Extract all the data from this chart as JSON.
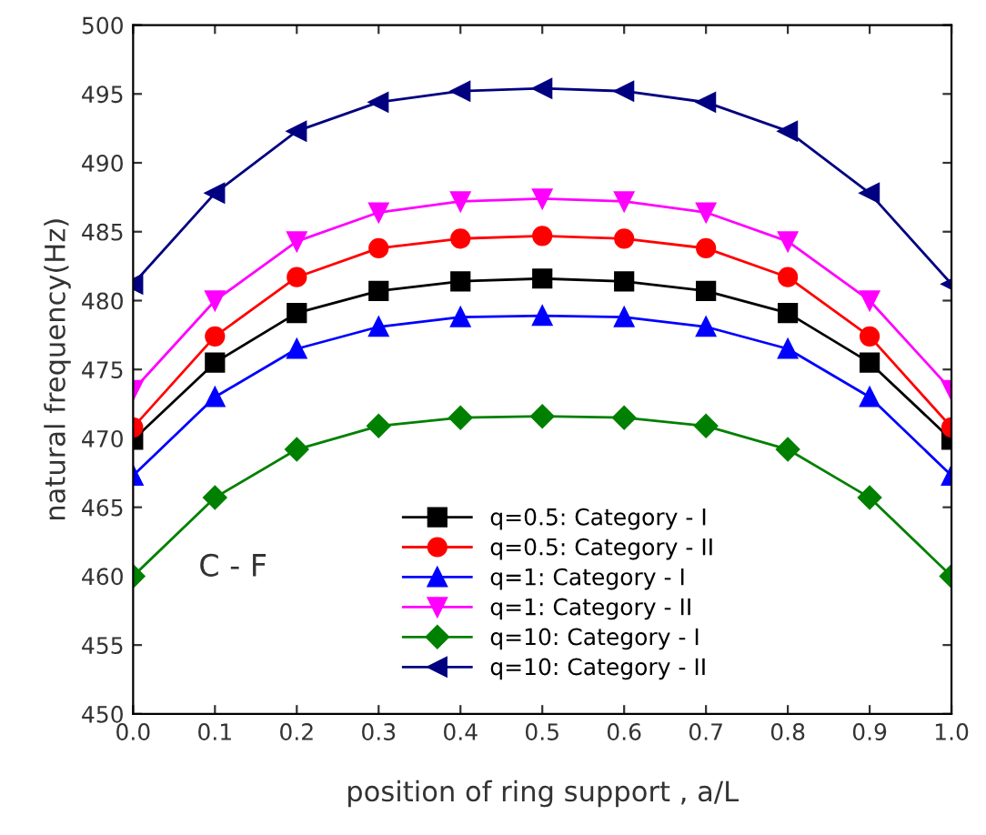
{
  "chart_data": {
    "type": "line",
    "xlabel": "position of ring support , a/L",
    "ylabel": "natural frequency(Hz)",
    "x": [
      0.0,
      0.1,
      0.2,
      0.3,
      0.4,
      0.5,
      0.6,
      0.7,
      0.8,
      0.9,
      1.0
    ],
    "series": [
      {
        "name": "q=0.5: Category - I",
        "color": "#000000",
        "marker": "square",
        "values": [
          469.9,
          475.5,
          479.1,
          480.7,
          481.4,
          481.6,
          481.4,
          480.7,
          479.1,
          475.5,
          469.9
        ]
      },
      {
        "name": "q=0.5: Category - II",
        "color": "#ff0000",
        "marker": "circle",
        "values": [
          470.8,
          477.4,
          481.7,
          483.8,
          484.5,
          484.7,
          484.5,
          483.8,
          481.7,
          477.4,
          470.8
        ]
      },
      {
        "name": "q=1: Category - I",
        "color": "#0000ff",
        "marker": "triangle",
        "values": [
          467.3,
          473.0,
          476.5,
          478.1,
          478.8,
          478.9,
          478.8,
          478.1,
          476.5,
          473.0,
          467.3
        ]
      },
      {
        "name": "q=1: Category - II",
        "color": "#ff00ff",
        "marker": "triangle_down",
        "values": [
          473.5,
          480.0,
          484.3,
          486.4,
          487.2,
          487.4,
          487.2,
          486.4,
          484.3,
          480.0,
          473.5
        ]
      },
      {
        "name": "q=10: Category - I",
        "color": "#008000",
        "marker": "diamond",
        "values": [
          460.0,
          465.7,
          469.2,
          470.9,
          471.5,
          471.6,
          471.5,
          470.9,
          469.2,
          465.7,
          460.0
        ]
      },
      {
        "name": "q=10: Category - II",
        "color": "#000080",
        "marker": "triangle_left",
        "values": [
          481.2,
          487.8,
          492.3,
          494.4,
          495.2,
          495.4,
          495.2,
          494.4,
          492.3,
          487.8,
          481.2
        ]
      }
    ],
    "xlim": [
      0.0,
      1.0
    ],
    "xticks": [
      {
        "value": 0.0,
        "label": "0.0"
      },
      0.1,
      0.2,
      0.3,
      0.4,
      0.5,
      0.6,
      0.7,
      0.8,
      0.9,
      {
        "value": 1.0,
        "label": "1.0"
      }
    ],
    "ylim": [
      450,
      500
    ],
    "yticks": [
      450,
      455,
      460,
      465,
      470,
      475,
      480,
      485,
      490,
      495,
      500
    ],
    "grid": false,
    "legend": "bottom",
    "line_style": "solid",
    "annotations": [
      "C - F"
    ]
  }
}
